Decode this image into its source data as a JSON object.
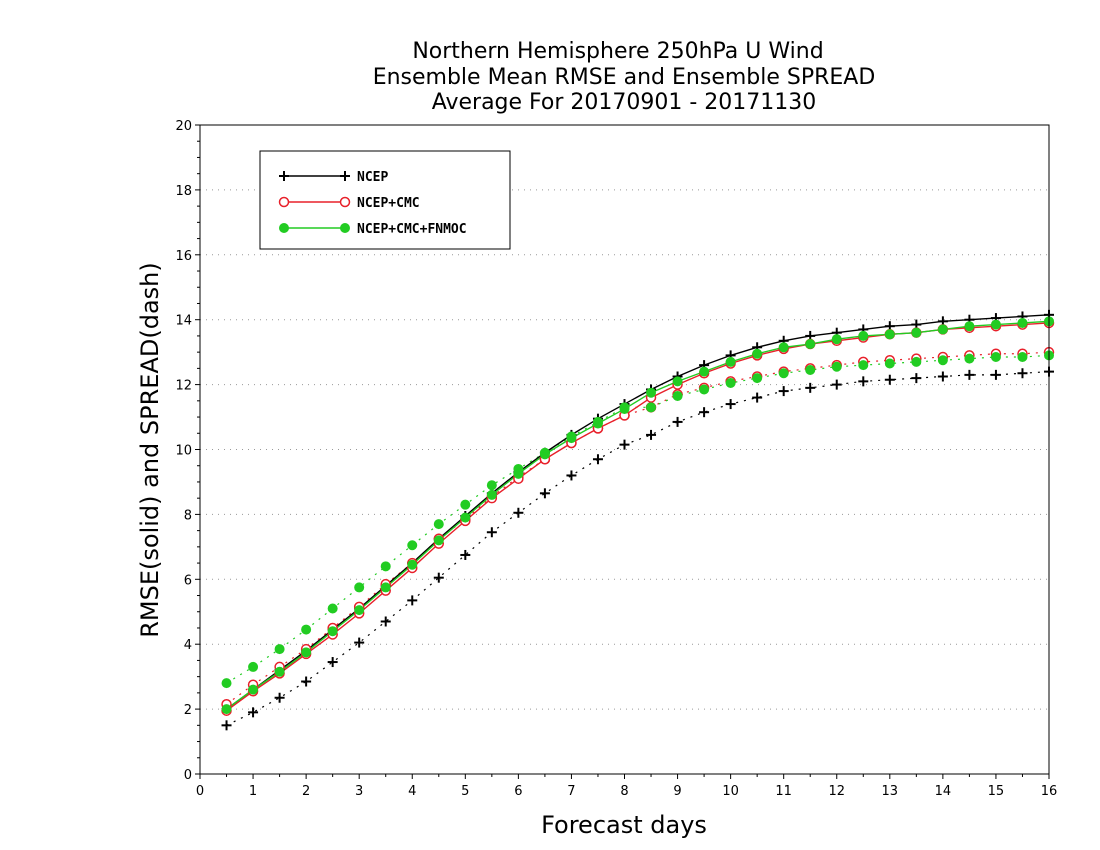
{
  "chart_data": {
    "type": "line",
    "title": [
      "Northern Hemisphere 250hPa U Wind",
      "Ensemble Mean RMSE and Ensemble SPREAD",
      "Average For 20170901 - 20171130"
    ],
    "xlabel": "Forecast days",
    "ylabel": "RMSE(solid) and SPREAD(dash)",
    "xlim": [
      0,
      16
    ],
    "ylim": [
      0,
      20
    ],
    "xticks": [
      "0",
      "1",
      "2",
      "3",
      "4",
      "5",
      "6",
      "7",
      "8",
      "9",
      "10",
      "11",
      "12",
      "13",
      "14",
      "15",
      "16"
    ],
    "yticks": [
      "0",
      "2",
      "4",
      "6",
      "8",
      "10",
      "12",
      "14",
      "16",
      "18",
      "20"
    ],
    "grid": "horizontal dotted",
    "legend_position": "top-left",
    "x": [
      0.5,
      1,
      1.5,
      2,
      2.5,
      3,
      3.5,
      4,
      4.5,
      5,
      5.5,
      6,
      6.5,
      7,
      7.5,
      8,
      8.5,
      9,
      9.5,
      10,
      10.5,
      11,
      11.5,
      12,
      12.5,
      13,
      13.5,
      14,
      14.5,
      15,
      15.5,
      16
    ],
    "series": [
      {
        "name": "NCEP",
        "color": "#000000",
        "marker": "plus",
        "rmse": [
          2.0,
          2.6,
          3.2,
          3.8,
          4.45,
          5.1,
          5.8,
          6.5,
          7.25,
          7.95,
          8.65,
          9.3,
          9.9,
          10.45,
          10.95,
          11.4,
          11.85,
          12.25,
          12.6,
          12.9,
          13.15,
          13.35,
          13.5,
          13.6,
          13.7,
          13.8,
          13.85,
          13.95,
          14.0,
          14.05,
          14.1,
          14.15
        ],
        "spread": [
          1.5,
          1.9,
          2.35,
          2.85,
          3.45,
          4.05,
          4.7,
          5.35,
          6.05,
          6.75,
          7.45,
          8.05,
          8.65,
          9.2,
          9.7,
          10.15,
          10.45,
          10.85,
          11.15,
          11.4,
          11.6,
          11.8,
          11.9,
          12.0,
          12.1,
          12.15,
          12.2,
          12.25,
          12.3,
          12.3,
          12.35,
          12.4
        ]
      },
      {
        "name": "NCEP+CMC",
        "color": "#e8202a",
        "marker": "open-circle",
        "rmse": [
          1.95,
          2.55,
          3.1,
          3.7,
          4.3,
          4.95,
          5.65,
          6.35,
          7.1,
          7.8,
          8.5,
          9.1,
          9.7,
          10.2,
          10.65,
          11.05,
          11.6,
          12.0,
          12.35,
          12.65,
          12.9,
          13.1,
          13.25,
          13.35,
          13.45,
          13.55,
          13.6,
          13.7,
          13.75,
          13.8,
          13.85,
          13.9
        ],
        "spread": [
          2.15,
          2.75,
          3.3,
          3.85,
          4.5,
          5.15,
          5.85,
          6.5,
          7.25,
          7.85,
          8.55,
          9.15,
          9.7,
          10.2,
          10.65,
          11.05,
          11.3,
          11.7,
          11.9,
          12.1,
          12.25,
          12.4,
          12.5,
          12.6,
          12.7,
          12.75,
          12.8,
          12.85,
          12.9,
          12.95,
          12.95,
          13.0
        ]
      },
      {
        "name": "NCEP+CMC+FNMOC",
        "color": "#22cc22",
        "marker": "filled-circle",
        "rmse": [
          2.0,
          2.6,
          3.15,
          3.75,
          4.4,
          5.05,
          5.75,
          6.45,
          7.2,
          7.9,
          8.6,
          9.25,
          9.85,
          10.35,
          10.8,
          11.25,
          11.75,
          12.1,
          12.4,
          12.7,
          12.95,
          13.15,
          13.25,
          13.4,
          13.5,
          13.55,
          13.6,
          13.7,
          13.8,
          13.85,
          13.9,
          13.95
        ],
        "spread": [
          2.8,
          3.3,
          3.85,
          4.45,
          5.1,
          5.75,
          6.4,
          7.05,
          7.7,
          8.3,
          8.9,
          9.4,
          9.9,
          10.4,
          10.85,
          11.3,
          11.3,
          11.65,
          11.85,
          12.05,
          12.2,
          12.35,
          12.45,
          12.55,
          12.6,
          12.65,
          12.7,
          12.75,
          12.8,
          12.85,
          12.85,
          12.9
        ]
      }
    ]
  }
}
